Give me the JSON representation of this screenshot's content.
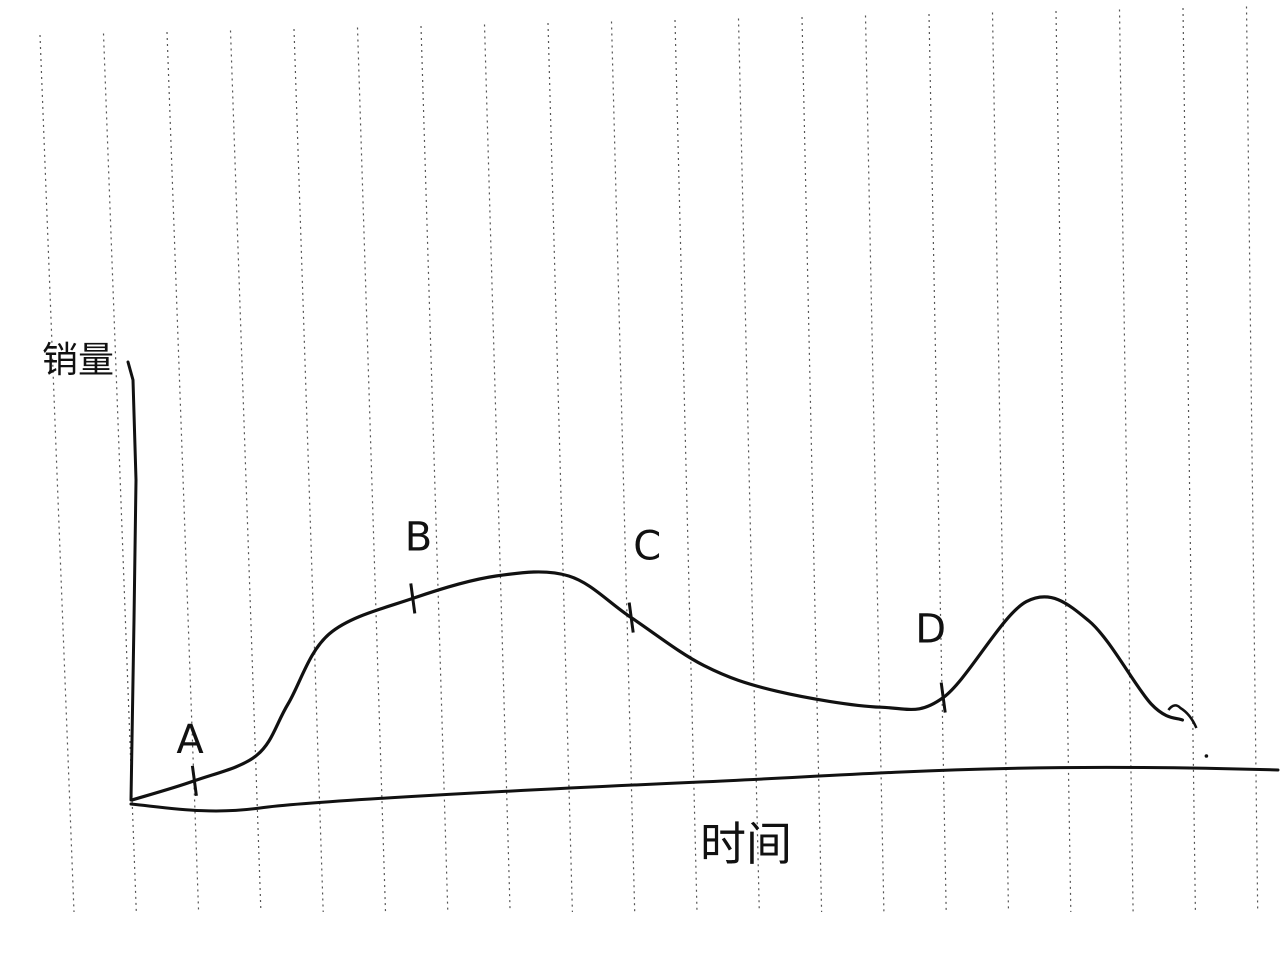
{
  "chart_data": {
    "type": "line",
    "title": "",
    "xlabel": "时间",
    "ylabel": "销量",
    "grid": true,
    "legend": "none",
    "xlim": [
      0,
      100
    ],
    "ylim": [
      0,
      100
    ],
    "series": [
      {
        "values": [
          {
            "x": 0,
            "y": 0
          },
          {
            "x": 6,
            "y": 6
          },
          {
            "x": 12,
            "y": 14
          },
          {
            "x": 15,
            "y": 30
          },
          {
            "x": 19,
            "y": 52
          },
          {
            "x": 27,
            "y": 63
          },
          {
            "x": 35,
            "y": 70
          },
          {
            "x": 42,
            "y": 70
          },
          {
            "x": 48,
            "y": 57
          },
          {
            "x": 55,
            "y": 42
          },
          {
            "x": 62,
            "y": 34
          },
          {
            "x": 72,
            "y": 29
          },
          {
            "x": 78,
            "y": 32
          },
          {
            "x": 86,
            "y": 62
          },
          {
            "x": 92,
            "y": 56
          },
          {
            "x": 98,
            "y": 30
          },
          {
            "x": 101,
            "y": 25
          }
        ]
      }
    ],
    "markers": [
      {
        "label": "A",
        "x": 6,
        "y": 6
      },
      {
        "label": "B",
        "x": 27,
        "y": 63
      },
      {
        "label": "C",
        "x": 48,
        "y": 57
      },
      {
        "label": "D",
        "x": 78,
        "y": 32
      }
    ]
  }
}
